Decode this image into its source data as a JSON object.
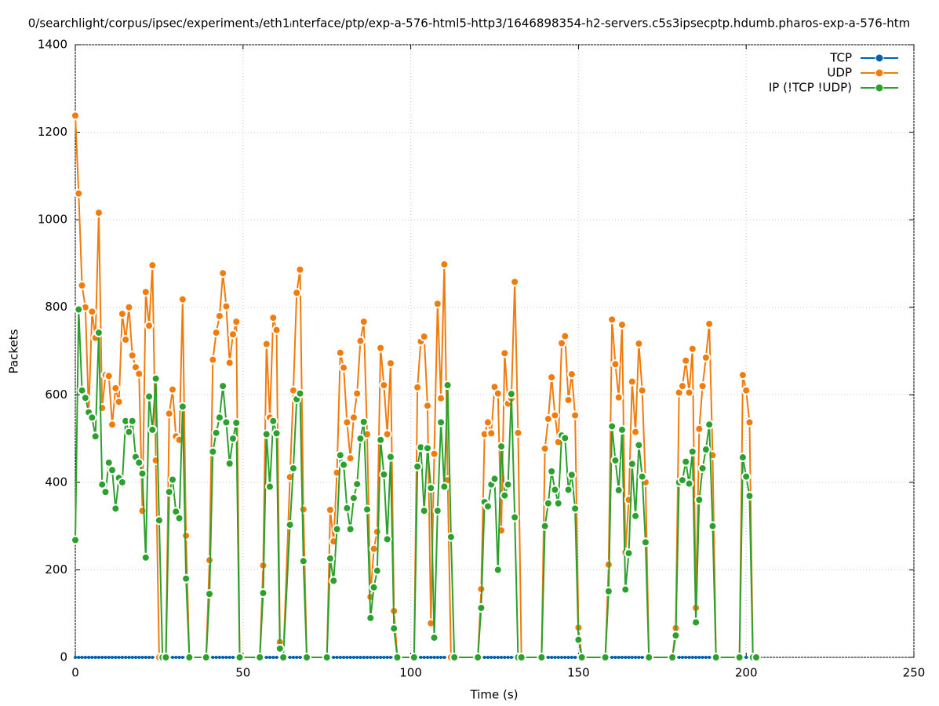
{
  "chart_data": {
    "type": "line",
    "title": "0/searchlight/corpus/ipsec/experiment₃/eth1ᵢnterface/ptp/exp-a-576-html5-http3/1646898354-h2-servers.c5s3ipsecptp.hdumb.pharos-exp-a-576-htm",
    "x_label": "Time (s)",
    "y_label": "Packets",
    "xlim": [
      0,
      250
    ],
    "xticks": [
      0,
      50,
      100,
      150,
      200,
      250
    ],
    "ylim": [
      0,
      1400
    ],
    "yticks": [
      0,
      200,
      400,
      600,
      800,
      1000,
      1200,
      1400
    ],
    "grid": true,
    "legend": "top-right",
    "x": [
      0,
      1,
      2,
      3,
      4,
      5,
      6,
      7,
      8,
      9,
      10,
      11,
      12,
      13,
      14,
      15,
      16,
      17,
      18,
      19,
      20,
      21,
      22,
      23,
      24,
      25,
      26,
      27,
      28,
      29,
      30,
      31,
      32,
      33,
      34,
      39,
      40,
      41,
      42,
      43,
      44,
      45,
      46,
      47,
      48,
      49,
      55,
      56,
      57,
      58,
      59,
      60,
      61,
      62,
      64,
      65,
      66,
      67,
      68,
      69,
      75,
      76,
      77,
      78,
      79,
      80,
      81,
      82,
      83,
      84,
      85,
      86,
      87,
      88,
      89,
      90,
      91,
      92,
      93,
      94,
      95,
      96,
      101,
      102,
      103,
      104,
      105,
      106,
      107,
      108,
      109,
      110,
      111,
      112,
      113,
      120,
      121,
      122,
      123,
      124,
      125,
      126,
      127,
      128,
      129,
      130,
      131,
      132,
      133,
      139,
      140,
      141,
      142,
      143,
      144,
      145,
      146,
      147,
      148,
      149,
      150,
      151,
      158,
      159,
      160,
      161,
      162,
      163,
      164,
      165,
      166,
      167,
      168,
      169,
      170,
      171,
      178,
      179,
      180,
      181,
      182,
      183,
      184,
      185,
      186,
      187,
      188,
      189,
      190,
      191,
      198,
      199,
      200,
      201,
      202,
      203
    ],
    "series": [
      {
        "name": "TCP",
        "color": "#0060ad",
        "values": [
          0,
          0,
          0,
          0,
          0,
          0,
          0,
          0,
          0,
          0,
          0,
          0,
          0,
          0,
          0,
          0,
          0,
          0,
          0,
          0,
          0,
          0,
          0,
          0,
          0,
          0,
          0,
          0,
          0,
          0,
          0,
          0,
          0,
          0,
          0,
          0,
          0,
          0,
          0,
          0,
          0,
          0,
          0,
          0,
          0,
          0,
          0,
          0,
          0,
          0,
          0,
          0,
          0,
          0,
          0,
          0,
          0,
          0,
          0,
          0,
          0,
          0,
          0,
          0,
          0,
          0,
          0,
          0,
          0,
          0,
          0,
          0,
          0,
          0,
          0,
          0,
          0,
          0,
          0,
          0,
          0,
          0,
          0,
          0,
          0,
          0,
          0,
          0,
          0,
          0,
          0,
          0,
          0,
          0,
          0,
          0,
          0,
          0,
          0,
          0,
          0,
          0,
          0,
          0,
          0,
          0,
          0,
          0,
          0,
          0,
          0,
          0,
          0,
          0,
          0,
          0,
          0,
          0,
          0,
          0,
          0,
          0,
          0,
          0,
          0,
          0,
          0,
          0,
          0,
          0,
          0,
          0,
          0,
          0,
          0,
          0,
          0,
          0,
          0,
          0,
          0,
          0,
          0,
          0,
          0,
          0,
          0,
          0,
          0,
          0,
          0,
          0,
          0,
          0,
          0,
          0
        ]
      },
      {
        "name": "UDP",
        "color": "#f07c0e",
        "values": [
          1238,
          1060,
          850,
          800,
          560,
          790,
          730,
          1016,
          570,
          645,
          643,
          532,
          615,
          584,
          785,
          726,
          800,
          690,
          663,
          648,
          335,
          835,
          758,
          896,
          450,
          0,
          0,
          0,
          557,
          612,
          505,
          497,
          818,
          278,
          0,
          0,
          222,
          680,
          742,
          780,
          878,
          802,
          673,
          738,
          767,
          0,
          0,
          210,
          716,
          548,
          776,
          748,
          35,
          0,
          412,
          610,
          833,
          886,
          338,
          0,
          0,
          337,
          265,
          422,
          696,
          662,
          537,
          455,
          548,
          603,
          723,
          767,
          510,
          138,
          248,
          287,
          707,
          622,
          510,
          672,
          106,
          0,
          0,
          617,
          722,
          733,
          575,
          78,
          465,
          808,
          592,
          898,
          405,
          0,
          0,
          0,
          156,
          510,
          537,
          512,
          618,
          603,
          290,
          695,
          580,
          592,
          858,
          513,
          0,
          0,
          477,
          545,
          640,
          553,
          492,
          718,
          734,
          588,
          647,
          553,
          68,
          0,
          0,
          212,
          772,
          670,
          594,
          760,
          240,
          360,
          630,
          515,
          717,
          610,
          400,
          0,
          0,
          67,
          605,
          620,
          678,
          605,
          705,
          113,
          522,
          620,
          685,
          762,
          462,
          0,
          0,
          645,
          610,
          537,
          0,
          0
        ]
      },
      {
        "name": "IP (!TCP  !UDP)",
        "color": "#2ca02c",
        "values": [
          268,
          795,
          610,
          593,
          560,
          548,
          505,
          742,
          395,
          378,
          445,
          428,
          340,
          410,
          400,
          540,
          515,
          540,
          458,
          445,
          420,
          228,
          596,
          520,
          637,
          313,
          0,
          0,
          378,
          406,
          333,
          318,
          573,
          180,
          0,
          0,
          145,
          470,
          513,
          548,
          620,
          537,
          443,
          500,
          536,
          0,
          0,
          147,
          510,
          390,
          540,
          512,
          20,
          0,
          303,
          432,
          590,
          603,
          220,
          0,
          0,
          226,
          175,
          293,
          462,
          440,
          341,
          293,
          364,
          396,
          500,
          538,
          338,
          90,
          160,
          198,
          497,
          418,
          270,
          458,
          66,
          0,
          0,
          436,
          480,
          335,
          478,
          387,
          45,
          335,
          537,
          390,
          622,
          275,
          0,
          0,
          113,
          355,
          345,
          395,
          408,
          200,
          482,
          370,
          395,
          602,
          320,
          0,
          0,
          0,
          300,
          352,
          425,
          383,
          352,
          507,
          501,
          383,
          417,
          340,
          40,
          0,
          0,
          151,
          528,
          450,
          382,
          520,
          155,
          238,
          442,
          323,
          485,
          413,
          263,
          0,
          0,
          50,
          400,
          405,
          447,
          397,
          470,
          80,
          360,
          432,
          475,
          532,
          300,
          0,
          0,
          457,
          413,
          369,
          0,
          0
        ]
      }
    ]
  }
}
